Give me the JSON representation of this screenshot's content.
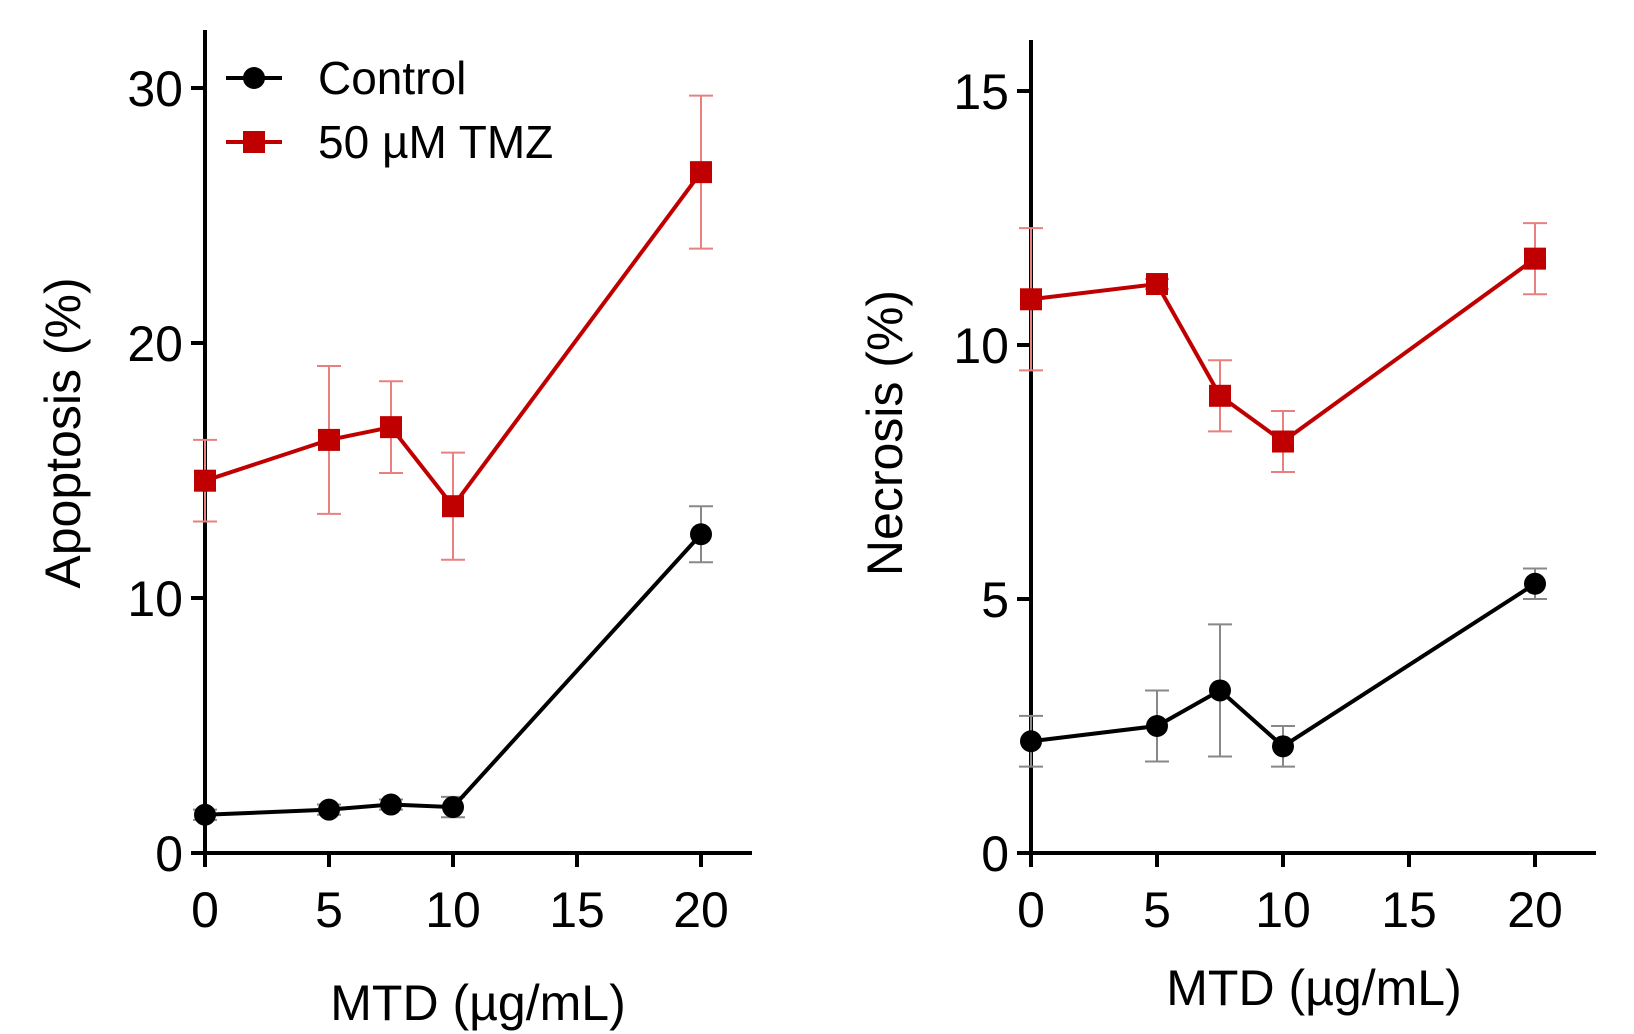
{
  "colors": {
    "control": "#000000",
    "tmz": "#c00000",
    "tmz_error": "#e88080",
    "control_error": "#888888"
  },
  "chart_data": [
    {
      "type": "line",
      "id": "apoptosis",
      "xlabel": "MTD (µg/mL)",
      "ylabel": "Apoptosis (%)",
      "xlim": [
        0,
        22
      ],
      "ylim": [
        0,
        32
      ],
      "xticks": [
        0,
        5,
        10,
        15,
        20
      ],
      "yticks": [
        0,
        10,
        20,
        30
      ],
      "x": [
        0,
        5,
        7.5,
        10,
        20
      ],
      "series": [
        {
          "name": "Control",
          "marker": "circle",
          "values": [
            1.5,
            1.7,
            1.9,
            1.8,
            12.5
          ],
          "err": [
            0.2,
            0.2,
            0.2,
            0.4,
            1.1
          ]
        },
        {
          "name": "50 µM TMZ",
          "marker": "square",
          "values": [
            14.6,
            16.2,
            16.7,
            13.6,
            26.7
          ],
          "err": [
            1.6,
            2.9,
            1.8,
            2.1,
            3.0
          ]
        }
      ],
      "legend": "top-left"
    },
    {
      "type": "line",
      "id": "necrosis",
      "xlabel": "MTD (µg/mL)",
      "ylabel": "Necrosis (%)",
      "xlim": [
        0,
        22
      ],
      "ylim": [
        0,
        16
      ],
      "xticks": [
        0,
        5,
        10,
        15,
        20
      ],
      "yticks": [
        0,
        5,
        10,
        15
      ],
      "x": [
        0,
        5,
        7.5,
        10,
        20
      ],
      "series": [
        {
          "name": "Control",
          "marker": "circle",
          "values": [
            2.2,
            2.5,
            3.2,
            2.1,
            5.3
          ],
          "err": [
            0.5,
            0.7,
            1.3,
            0.4,
            0.3
          ]
        },
        {
          "name": "50 µM TMZ",
          "marker": "square",
          "values": [
            10.9,
            11.2,
            9.0,
            8.1,
            11.7
          ],
          "err": [
            1.4,
            0.1,
            0.7,
            0.6,
            0.7
          ]
        }
      ]
    }
  ]
}
